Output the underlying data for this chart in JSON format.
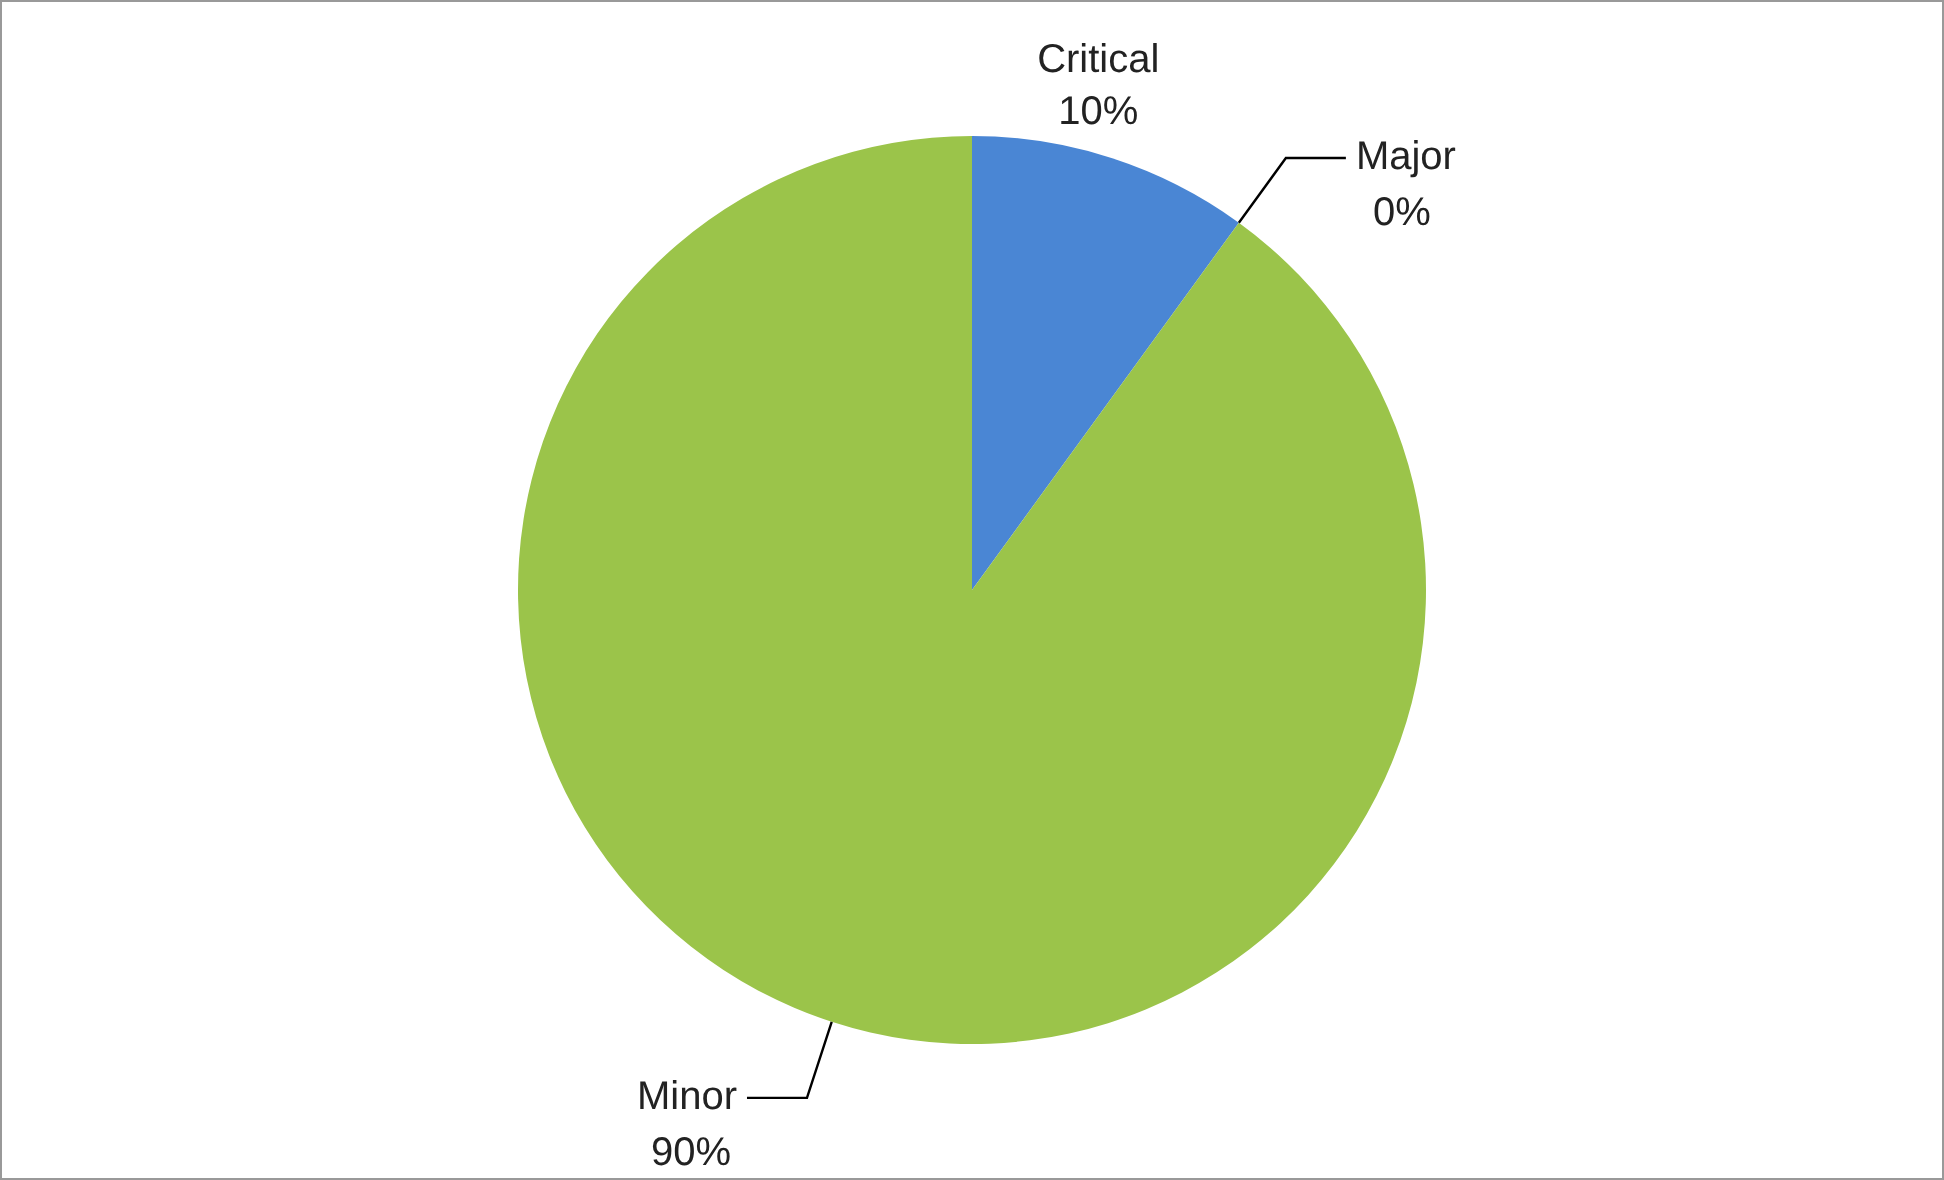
{
  "chart_data": {
    "type": "pie",
    "categories": [
      "Critical",
      "Major",
      "Minor"
    ],
    "values": [
      10,
      0,
      90
    ],
    "colors": [
      "#4a86d4",
      "#8fbf3f",
      "#9bc44a"
    ],
    "value_labels": [
      "10%",
      "0%",
      "90%"
    ],
    "legend": false
  }
}
